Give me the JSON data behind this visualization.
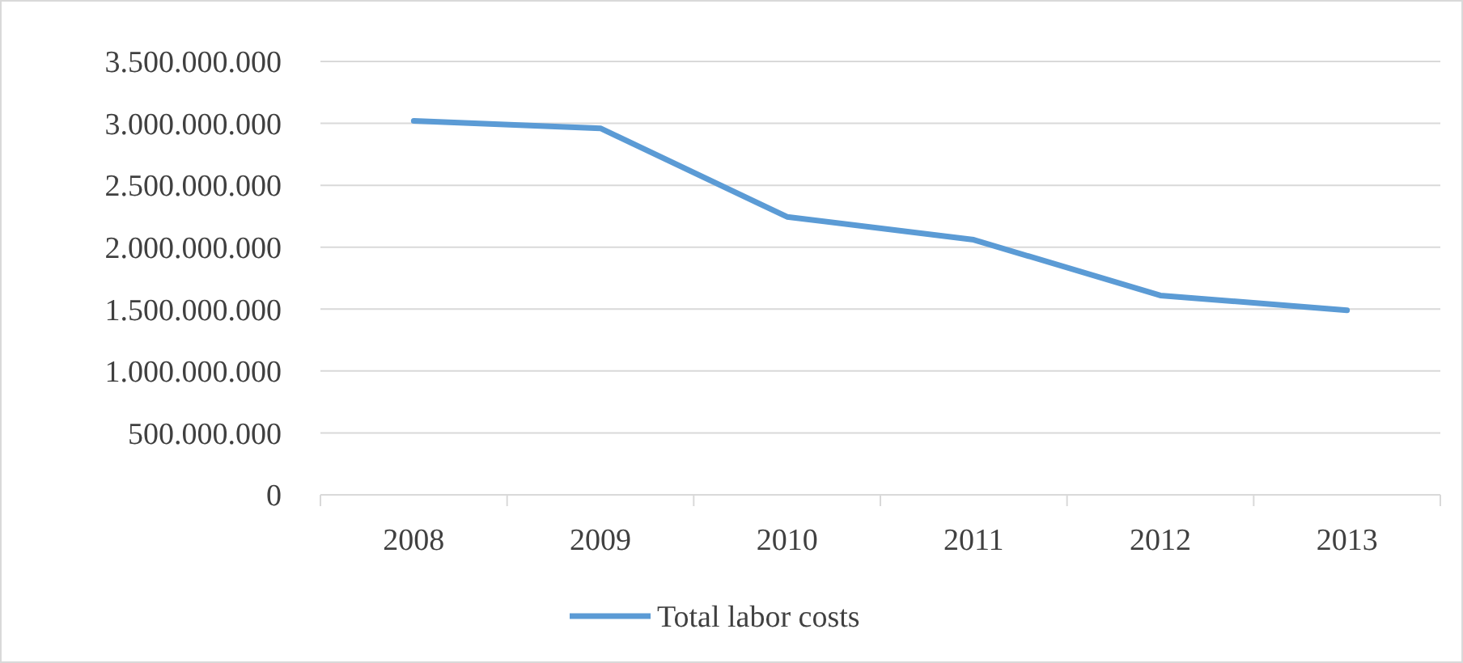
{
  "chart_data": {
    "type": "line",
    "categories": [
      "2008",
      "2009",
      "2010",
      "2011",
      "2012",
      "2013"
    ],
    "series": [
      {
        "name": "Total labor costs",
        "color": "#5b9bd5",
        "values": [
          3020000000,
          2960000000,
          2245000000,
          2060000000,
          1610000000,
          1490000000
        ]
      }
    ],
    "ylim": [
      0,
      3500000000
    ],
    "yticks": [
      0,
      {
        "value": 500000000,
        "label": "500.000.000"
      },
      {
        "value": 1000000000,
        "label": "1.000.000.000"
      },
      {
        "value": 1500000000,
        "label": "1.500.000.000"
      },
      {
        "value": 2000000000,
        "label": "2.000.000.000"
      },
      {
        "value": 2500000000,
        "label": "2.500.000.000"
      },
      {
        "value": 3000000000,
        "label": "3.000.000.000"
      },
      {
        "value": 3500000000,
        "label": "3.500.000.000"
      }
    ],
    "grid": "y",
    "legend": "bottom",
    "marker": "none",
    "line_style": "solid"
  }
}
